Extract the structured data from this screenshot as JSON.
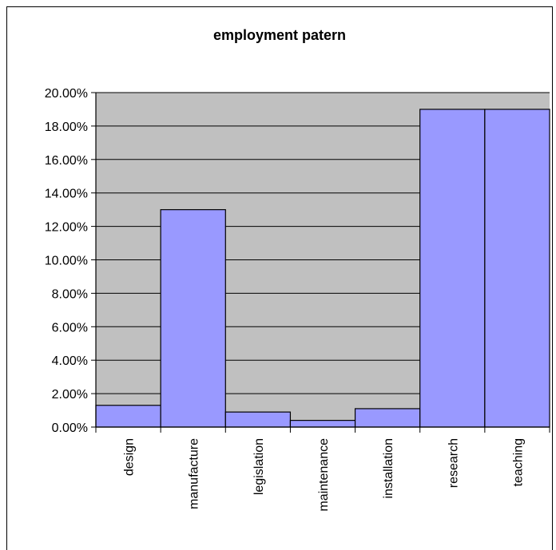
{
  "chart_data": {
    "type": "bar",
    "title": "employment patern",
    "xlabel": "",
    "ylabel": "",
    "categories": [
      "design",
      "manufacture",
      "legislation",
      "maintenance",
      "installation",
      "research",
      "teaching"
    ],
    "values": [
      1.3,
      13.0,
      0.9,
      0.4,
      1.1,
      19.0,
      19.0
    ],
    "ylim": [
      0,
      20
    ],
    "y_ticks": [
      0,
      2,
      4,
      6,
      8,
      10,
      12,
      14,
      16,
      18,
      20
    ],
    "y_tick_labels": [
      "0.00%",
      "2.00%",
      "4.00%",
      "6.00%",
      "8.00%",
      "10.00%",
      "12.00%",
      "14.00%",
      "16.00%",
      "18.00%",
      "20.00%"
    ],
    "grid": true,
    "legend": "none"
  },
  "colors": {
    "plot_background": "#c0c0c0",
    "bar_fill": "#9999ff",
    "bar_stroke": "#000000",
    "gridline": "#000000"
  }
}
